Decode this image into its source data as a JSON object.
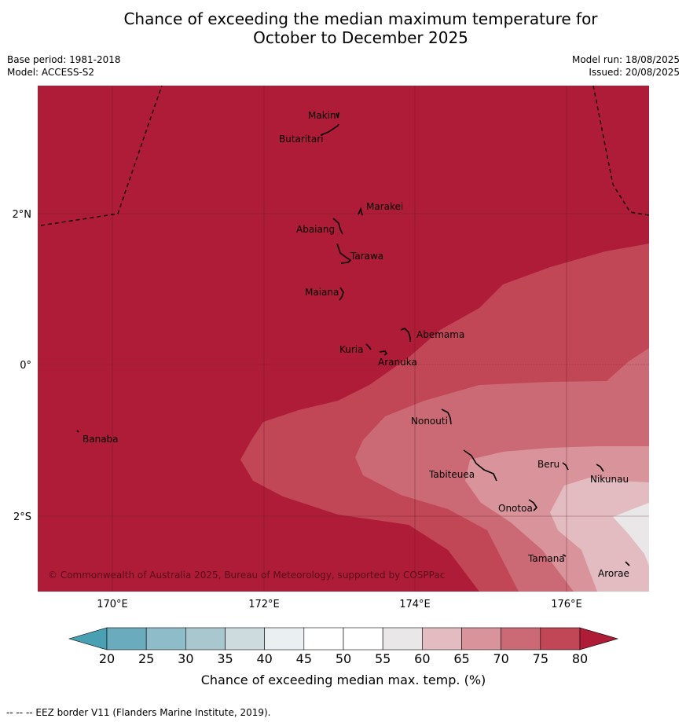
{
  "header": {
    "title_line1": "Chance of exceeding the median maximum temperature for",
    "title_line2": "October to December 2025",
    "base_period": "Base period: 1981-2018",
    "model": "Model: ACCESS-S2",
    "model_run": "Model run: 18/08/2025",
    "issued": "Issued: 20/08/2025"
  },
  "map": {
    "lat_labels": [
      "2°N",
      "0°",
      "2°S"
    ],
    "lon_labels": [
      "170°E",
      "172°E",
      "174°E",
      "176°E"
    ],
    "copyright": "© Commonwealth of Australia 2025, Bureau of Meteorology, supported by COSPPac",
    "islands": [
      {
        "name": "Makin"
      },
      {
        "name": "Butaritari"
      },
      {
        "name": "Marakei"
      },
      {
        "name": "Abaiang"
      },
      {
        "name": "Tarawa"
      },
      {
        "name": "Maiana"
      },
      {
        "name": "Abemama"
      },
      {
        "name": "Kuria"
      },
      {
        "name": "Aranuka"
      },
      {
        "name": "Nonouti"
      },
      {
        "name": "Banaba"
      },
      {
        "name": "Beru"
      },
      {
        "name": "Tabiteuea"
      },
      {
        "name": "Nikunau"
      },
      {
        "name": "Onotoa"
      },
      {
        "name": "Tamana"
      },
      {
        "name": "Arorae"
      }
    ]
  },
  "colorbar": {
    "ticks": [
      "20",
      "25",
      "30",
      "35",
      "40",
      "45",
      "50",
      "55",
      "60",
      "65",
      "70",
      "75",
      "80"
    ],
    "colors": [
      "#6aacbd",
      "#8ebcc8",
      "#a9c7ce",
      "#cddbdf",
      "#eaeff1",
      "#ffffff",
      "#ffffff",
      "#e9e7e8",
      "#e3bcc2",
      "#d9939b",
      "#cb6a74",
      "#c14656"
    ],
    "low_color": "#4aa0b3",
    "high_color": "#ae1c37",
    "label": "Chance of exceeding median max. temp. (%)"
  },
  "footer": {
    "legend_text": "--  --  -- EEZ border V11 (Flanders Marine Institute, 2019)."
  }
}
